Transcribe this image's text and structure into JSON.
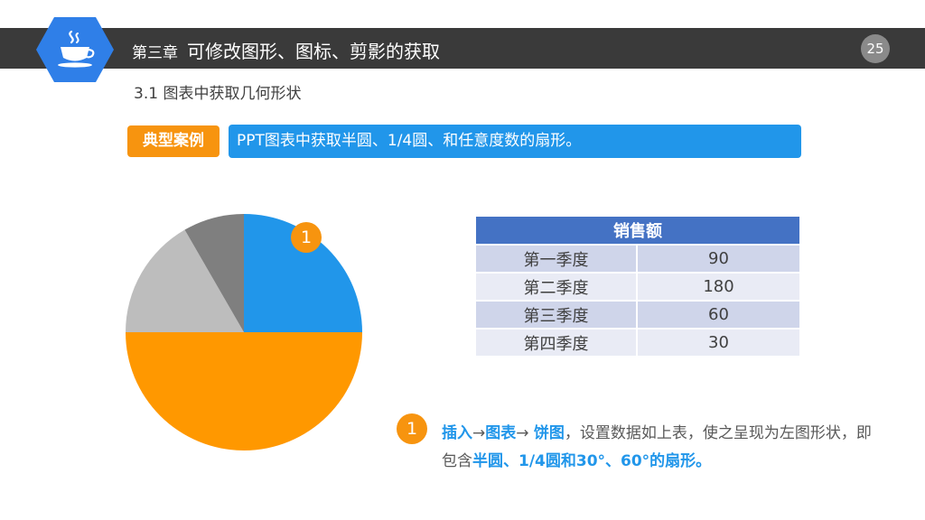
{
  "header": {
    "chapter_prefix": "第三章",
    "chapter_title": "可修改图形、图标、剪影的获取",
    "page_number": "25",
    "logo_icon": "coffee-cup-icon",
    "colors": {
      "bar": "#3a3a3a",
      "logo": "#2f7fe8"
    }
  },
  "section": {
    "title": "3.1 图表中获取几何形状"
  },
  "case": {
    "tag_label": "典型案例",
    "banner_text": "PPT图表中获取半圆、1/4圆、和任意度数的扇形。",
    "colors": {
      "tag": "#f7940f",
      "banner": "#2196ea"
    }
  },
  "chart_data": {
    "type": "pie",
    "categories": [
      "第一季度",
      "第二季度",
      "第三季度",
      "第四季度"
    ],
    "values": [
      90,
      180,
      60,
      30
    ],
    "colors": [
      "#2196ea",
      "#ff9800",
      "#bdbdbd",
      "#7f7f7f"
    ],
    "start_angle_deg": 0,
    "direction": "clockwise"
  },
  "callout": {
    "marker": "1"
  },
  "table": {
    "header": "销售额",
    "rows": [
      {
        "quarter": "第一季度",
        "value": "90"
      },
      {
        "quarter": "第二季度",
        "value": "180"
      },
      {
        "quarter": "第三季度",
        "value": "60"
      },
      {
        "quarter": "第四季度",
        "value": "30"
      }
    ]
  },
  "note": {
    "marker": "1",
    "p1": "插入",
    "arrow1": "→",
    "p2": "图表",
    "arrow2": "→ ",
    "p3": "饼图",
    "p4": "，设置数据如上表，使之呈现为左图形状，即包含",
    "p5": "半圆、1/4圆和30°、60°的扇形。"
  }
}
